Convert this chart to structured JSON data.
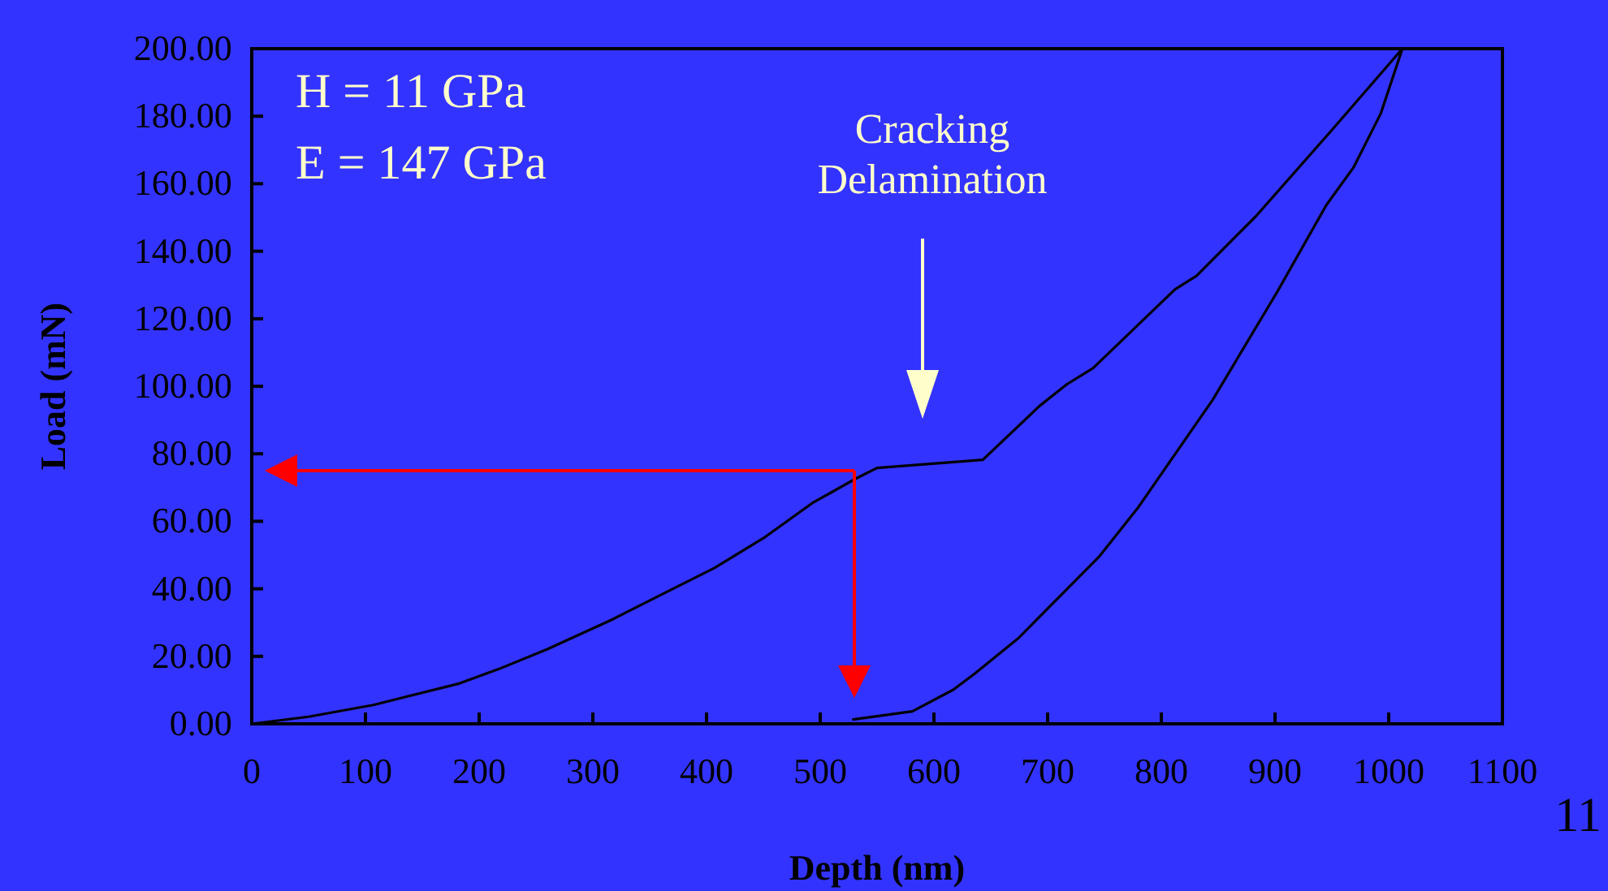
{
  "chart_data": {
    "type": "line",
    "xlabel": "Depth (nm)",
    "ylabel": "Load (mN)",
    "xlim": [
      0,
      1100
    ],
    "xticks": [
      0,
      100,
      200,
      300,
      400,
      500,
      600,
      700,
      800,
      900,
      1000,
      1100
    ],
    "ylim": [
      0,
      200
    ],
    "yticks": [
      {
        "value": 0,
        "label": "0.00"
      },
      {
        "value": 20,
        "label": "20.00"
      },
      {
        "value": 40,
        "label": "40.00"
      },
      {
        "value": 60,
        "label": "60.00"
      },
      {
        "value": 80,
        "label": "80.00"
      },
      {
        "value": 100,
        "label": "100.00"
      },
      {
        "value": 120,
        "label": "120.00"
      },
      {
        "value": 140,
        "label": "140.00"
      },
      {
        "value": 160,
        "label": "160.00"
      },
      {
        "value": 180,
        "label": "180.00"
      },
      {
        "value": 200,
        "label": "200.00"
      }
    ],
    "grid": false,
    "marker": "none",
    "line_style": "solid",
    "series": [
      {
        "color": "#000000",
        "x": [
          0,
          50,
          107,
          183,
          217,
          260,
          317,
          364,
          407,
          450,
          493,
          531,
          550,
          643,
          693,
          717,
          740,
          812,
          831,
          883,
          950,
          1012,
          993,
          969,
          945,
          902,
          845,
          779,
          745,
          674,
          636,
          617,
          581,
          529
        ],
        "values": [
          0,
          2.1,
          5.6,
          12.0,
          16.2,
          22.1,
          30.9,
          38.9,
          46.2,
          55.0,
          65.4,
          72.6,
          75.8,
          78.2,
          94.2,
          100.6,
          105.4,
          128.7,
          132.7,
          150.3,
          175.9,
          200,
          180.8,
          164.8,
          153.6,
          128,
          95.9,
          63.8,
          49.4,
          25.3,
          14.9,
          10.1,
          3.7,
          1.3
        ]
      }
    ],
    "ref_lines": [
      {
        "axis": "x",
        "value": 530,
        "color": "#ff0000"
      },
      {
        "axis": "y",
        "value": 75,
        "color": "#ff0000"
      }
    ],
    "annotations": [
      "H = 11 GPa",
      "E = 147 GPa",
      "Cracking Delamination",
      "11"
    ]
  }
}
